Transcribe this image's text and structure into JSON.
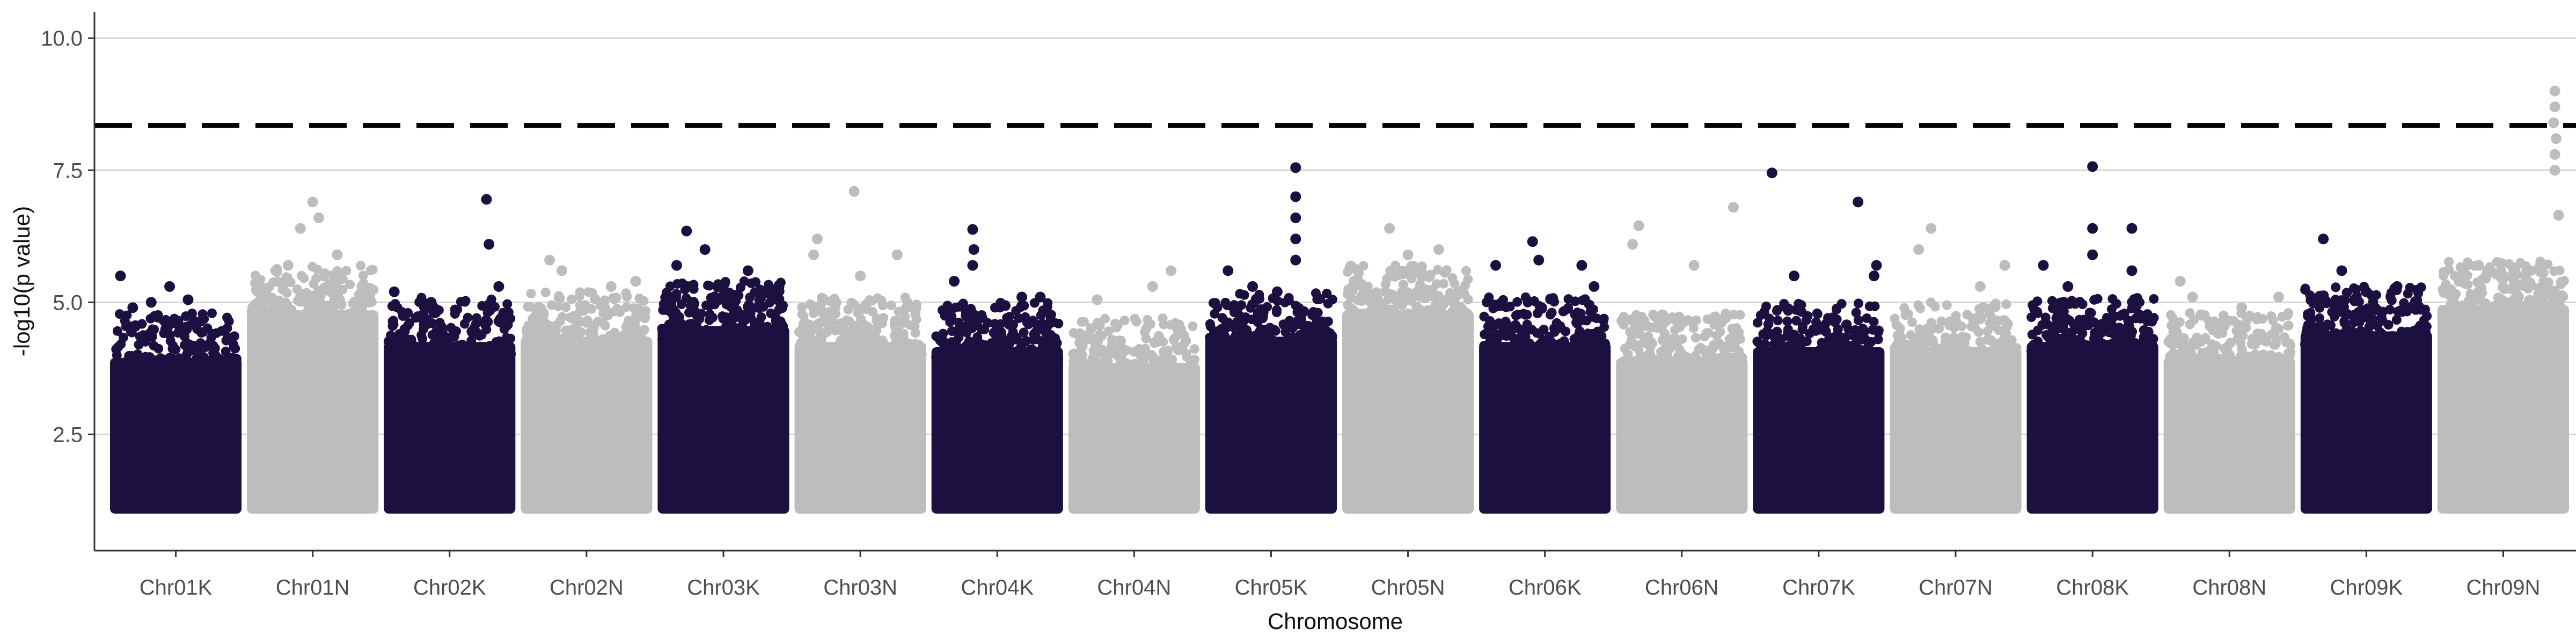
{
  "chart_data": {
    "type": "scatter",
    "title": "",
    "xlabel": "Chromosome",
    "ylabel": "-log10(p value)",
    "ylim": [
      0.3,
      10.5
    ],
    "yticks": [
      2.5,
      5.0,
      7.5,
      10.0
    ],
    "ytick_labels": [
      "2.5",
      "5.0",
      "7.5",
      "10.0"
    ],
    "grid": "horizontal major lines",
    "legend": "none",
    "threshold": {
      "value": 8.35,
      "style": "dashed",
      "color": "#000000"
    },
    "colors": {
      "dark": "#1c1040",
      "light": "#bdbdbd"
    },
    "categories": [
      "Chr01K",
      "Chr01N",
      "Chr02K",
      "Chr02N",
      "Chr03K",
      "Chr03N",
      "Chr04K",
      "Chr04N",
      "Chr05K",
      "Chr05N",
      "Chr06K",
      "Chr06N",
      "Chr07K",
      "Chr07N",
      "Chr08K",
      "Chr08N",
      "Chr09K",
      "Chr09N"
    ],
    "series": [
      {
        "chromosome": "Chr01K",
        "color": "dark",
        "bulk_top": 4.3,
        "peaks": [
          [
            0.05,
            5.5
          ],
          [
            0.3,
            5.0
          ],
          [
            0.45,
            5.3
          ],
          [
            0.6,
            5.05
          ],
          [
            0.15,
            4.9
          ]
        ]
      },
      {
        "chromosome": "Chr01N",
        "color": "light",
        "bulk_top": 5.2,
        "peaks": [
          [
            0.5,
            6.9
          ],
          [
            0.55,
            6.6
          ],
          [
            0.4,
            6.4
          ],
          [
            0.7,
            5.9
          ],
          [
            0.3,
            5.7
          ],
          [
            0.2,
            5.6
          ]
        ]
      },
      {
        "chromosome": "Chr02K",
        "color": "dark",
        "bulk_top": 4.6,
        "peaks": [
          [
            0.8,
            6.95
          ],
          [
            0.82,
            6.1
          ],
          [
            0.05,
            5.2
          ],
          [
            0.35,
            5.0
          ],
          [
            0.9,
            5.3
          ]
        ]
      },
      {
        "chromosome": "Chr02N",
        "color": "light",
        "bulk_top": 4.7,
        "peaks": [
          [
            0.2,
            5.8
          ],
          [
            0.3,
            5.6
          ],
          [
            0.7,
            5.3
          ],
          [
            0.9,
            5.4
          ]
        ]
      },
      {
        "chromosome": "Chr03K",
        "color": "dark",
        "bulk_top": 4.9,
        "peaks": [
          [
            0.2,
            6.35
          ],
          [
            0.35,
            6.0
          ],
          [
            0.12,
            5.7
          ],
          [
            0.7,
            5.6
          ],
          [
            0.9,
            5.1
          ]
        ]
      },
      {
        "chromosome": "Chr03N",
        "color": "light",
        "bulk_top": 4.6,
        "peaks": [
          [
            0.45,
            7.1
          ],
          [
            0.15,
            6.2
          ],
          [
            0.12,
            5.9
          ],
          [
            0.8,
            5.9
          ],
          [
            0.5,
            5.5
          ]
        ]
      },
      {
        "chromosome": "Chr04K",
        "color": "dark",
        "bulk_top": 4.5,
        "peaks": [
          [
            0.3,
            6.38
          ],
          [
            0.31,
            6.0
          ],
          [
            0.3,
            5.7
          ],
          [
            0.15,
            5.4
          ],
          [
            0.7,
            5.1
          ],
          [
            0.85,
            5.1
          ]
        ]
      },
      {
        "chromosome": "Chr04N",
        "color": "light",
        "bulk_top": 4.2,
        "peaks": [
          [
            0.8,
            5.6
          ],
          [
            0.65,
            5.3
          ],
          [
            0.2,
            5.05
          ]
        ]
      },
      {
        "chromosome": "Chr05K",
        "color": "dark",
        "bulk_top": 4.7,
        "peaks": [
          [
            0.7,
            7.55
          ],
          [
            0.7,
            7.0
          ],
          [
            0.7,
            6.6
          ],
          [
            0.7,
            6.2
          ],
          [
            0.7,
            5.8
          ],
          [
            0.15,
            5.6
          ],
          [
            0.35,
            5.3
          ],
          [
            0.55,
            5.2
          ]
        ]
      },
      {
        "chromosome": "Chr05N",
        "color": "light",
        "bulk_top": 5.2,
        "peaks": [
          [
            0.35,
            6.4
          ],
          [
            0.5,
            5.9
          ],
          [
            0.75,
            6.0
          ],
          [
            0.6,
            5.6
          ]
        ]
      },
      {
        "chromosome": "Chr06K",
        "color": "dark",
        "bulk_top": 4.6,
        "peaks": [
          [
            0.4,
            6.15
          ],
          [
            0.1,
            5.7
          ],
          [
            0.45,
            5.8
          ],
          [
            0.8,
            5.7
          ],
          [
            0.9,
            5.3
          ]
        ]
      },
      {
        "chromosome": "Chr06N",
        "color": "light",
        "bulk_top": 4.3,
        "peaks": [
          [
            0.15,
            6.45
          ],
          [
            0.1,
            6.1
          ],
          [
            0.92,
            6.8
          ],
          [
            0.6,
            5.7
          ]
        ]
      },
      {
        "chromosome": "Chr07K",
        "color": "dark",
        "bulk_top": 4.5,
        "peaks": [
          [
            0.12,
            7.45
          ],
          [
            0.82,
            6.9
          ],
          [
            0.97,
            5.7
          ],
          [
            0.3,
            5.5
          ],
          [
            0.95,
            5.5
          ]
        ]
      },
      {
        "chromosome": "Chr07N",
        "color": "light",
        "bulk_top": 4.5,
        "peaks": [
          [
            0.3,
            6.4
          ],
          [
            0.2,
            6.0
          ],
          [
            0.9,
            5.7
          ],
          [
            0.7,
            5.3
          ]
        ]
      },
      {
        "chromosome": "Chr08K",
        "color": "dark",
        "bulk_top": 4.6,
        "peaks": [
          [
            0.5,
            7.57
          ],
          [
            0.5,
            6.4
          ],
          [
            0.82,
            6.4
          ],
          [
            0.5,
            5.9
          ],
          [
            0.1,
            5.7
          ],
          [
            0.82,
            5.6
          ],
          [
            0.3,
            5.3
          ]
        ]
      },
      {
        "chromosome": "Chr08N",
        "color": "light",
        "bulk_top": 4.3,
        "peaks": [
          [
            0.1,
            5.4
          ],
          [
            0.2,
            5.1
          ],
          [
            0.9,
            5.1
          ],
          [
            0.6,
            4.9
          ]
        ]
      },
      {
        "chromosome": "Chr09K",
        "color": "dark",
        "bulk_top": 4.8,
        "peaks": [
          [
            0.15,
            6.2
          ],
          [
            0.3,
            5.6
          ],
          [
            0.75,
            5.3
          ],
          [
            0.5,
            5.2
          ]
        ]
      },
      {
        "chromosome": "Chr09N",
        "color": "light",
        "bulk_top": 5.3,
        "peaks": [
          [
            0.92,
            9.0
          ],
          [
            0.92,
            8.7
          ],
          [
            0.91,
            8.4
          ],
          [
            0.93,
            8.1
          ],
          [
            0.92,
            7.8
          ],
          [
            0.92,
            7.5
          ],
          [
            0.95,
            6.65
          ],
          [
            0.3,
            5.7
          ],
          [
            0.5,
            5.5
          ],
          [
            0.15,
            5.5
          ]
        ]
      }
    ]
  }
}
